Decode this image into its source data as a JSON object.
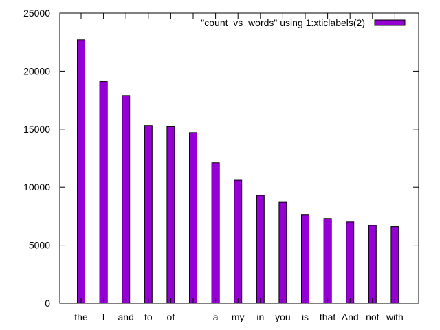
{
  "chart_data": {
    "type": "bar",
    "categories": [
      "the",
      "I",
      "and",
      "to",
      "of",
      "",
      "a",
      "my",
      "in",
      "you",
      "is",
      "that",
      "And",
      "not",
      "with"
    ],
    "series": [
      {
        "name": "\"count_vs_words\" using 1:xticlabels(2)",
        "values": [
          22700,
          19100,
          17900,
          15300,
          15200,
          14700,
          12100,
          10600,
          9300,
          8700,
          7600,
          7300,
          7000,
          6700,
          6600
        ],
        "color": "#9400d3"
      }
    ],
    "title": "",
    "xlabel": "",
    "ylabel": "",
    "ylim": [
      0,
      25000
    ],
    "yticks": [
      "0",
      "5000",
      "10000",
      "15000",
      "20000",
      "25000"
    ],
    "legend": "top-right",
    "grid": false
  }
}
